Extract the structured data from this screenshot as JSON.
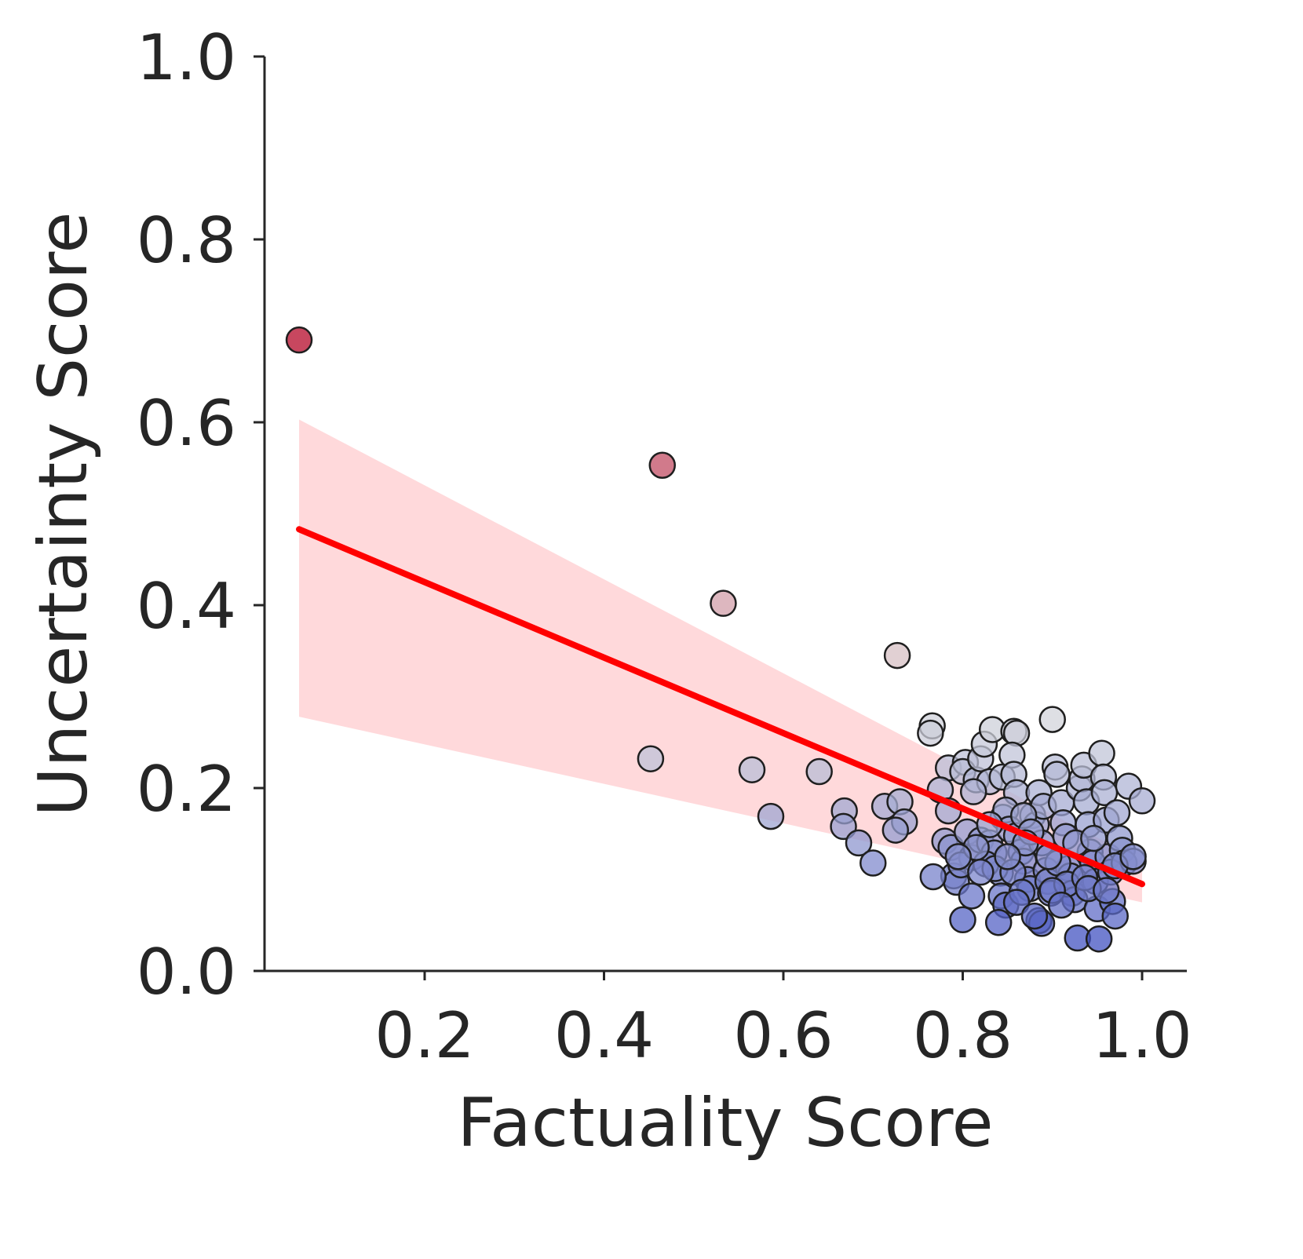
{
  "chart_data": {
    "type": "scatter",
    "xlabel": "Factuality Score",
    "ylabel": "Uncertainty Score",
    "xlim": [
      0.02,
      1.05
    ],
    "ylim": [
      0.0,
      1.0
    ],
    "xticks": [
      "0.2",
      "0.4",
      "0.6",
      "0.8",
      "1.0"
    ],
    "xtick_values": [
      0.2,
      0.4,
      0.6,
      0.8,
      1.0
    ],
    "yticks": [
      "0.0",
      "0.2",
      "0.4",
      "0.6",
      "0.8",
      "1.0"
    ],
    "ytick_values": [
      0.0,
      0.2,
      0.4,
      0.6,
      0.8,
      1.0
    ],
    "grid": false,
    "colors": {
      "regression_line": "#ff0000",
      "confidence_band": "#ffb3b8",
      "colormap": "coolwarm (color encodes uncertainty)"
    },
    "regression": {
      "x": [
        0.06,
        1.0
      ],
      "y": [
        0.483,
        0.095
      ],
      "ci_lower": [
        0.278,
        0.075
      ],
      "ci_upper": [
        0.603,
        0.12
      ]
    },
    "points": [
      [
        0.06,
        0.69
      ],
      [
        0.465,
        0.553
      ],
      [
        0.533,
        0.402
      ],
      [
        0.727,
        0.345
      ],
      [
        0.452,
        0.232
      ],
      [
        0.565,
        0.22
      ],
      [
        0.64,
        0.218
      ],
      [
        0.586,
        0.169
      ],
      [
        0.668,
        0.175
      ],
      [
        0.667,
        0.158
      ],
      [
        0.684,
        0.14
      ],
      [
        0.7,
        0.118
      ],
      [
        0.713,
        0.18
      ],
      [
        0.73,
        0.185
      ],
      [
        0.735,
        0.163
      ],
      [
        0.725,
        0.154
      ],
      [
        0.766,
        0.268
      ],
      [
        0.764,
        0.26
      ],
      [
        0.784,
        0.222
      ],
      [
        0.775,
        0.198
      ],
      [
        0.784,
        0.175
      ],
      [
        0.78,
        0.142
      ],
      [
        0.787,
        0.135
      ],
      [
        0.79,
        0.104
      ],
      [
        0.793,
        0.097
      ],
      [
        0.767,
        0.103
      ],
      [
        0.803,
        0.228
      ],
      [
        0.8,
        0.218
      ],
      [
        0.815,
        0.209
      ],
      [
        0.82,
        0.232
      ],
      [
        0.824,
        0.248
      ],
      [
        0.833,
        0.264
      ],
      [
        0.83,
        0.207
      ],
      [
        0.844,
        0.212
      ],
      [
        0.857,
        0.262
      ],
      [
        0.86,
        0.26
      ],
      [
        0.855,
        0.236
      ],
      [
        0.857,
        0.215
      ],
      [
        0.86,
        0.195
      ],
      [
        0.812,
        0.196
      ],
      [
        0.805,
        0.152
      ],
      [
        0.81,
        0.124
      ],
      [
        0.798,
        0.116
      ],
      [
        0.81,
        0.082
      ],
      [
        0.8,
        0.056
      ],
      [
        0.82,
        0.143
      ],
      [
        0.83,
        0.14
      ],
      [
        0.835,
        0.129
      ],
      [
        0.845,
        0.168
      ],
      [
        0.848,
        0.176
      ],
      [
        0.852,
        0.155
      ],
      [
        0.842,
        0.107
      ],
      [
        0.843,
        0.082
      ],
      [
        0.848,
        0.072
      ],
      [
        0.84,
        0.053
      ],
      [
        0.86,
        0.148
      ],
      [
        0.865,
        0.13
      ],
      [
        0.868,
        0.12
      ],
      [
        0.872,
        0.1
      ],
      [
        0.875,
        0.09
      ],
      [
        0.878,
        0.17
      ],
      [
        0.882,
        0.16
      ],
      [
        0.885,
        0.195
      ],
      [
        0.888,
        0.14
      ],
      [
        0.89,
        0.18
      ],
      [
        0.893,
        0.11
      ],
      [
        0.895,
        0.098
      ],
      [
        0.898,
        0.085
      ],
      [
        0.885,
        0.055
      ],
      [
        0.888,
        0.052
      ],
      [
        0.9,
        0.275
      ],
      [
        0.903,
        0.223
      ],
      [
        0.905,
        0.215
      ],
      [
        0.91,
        0.184
      ],
      [
        0.912,
        0.162
      ],
      [
        0.915,
        0.147
      ],
      [
        0.918,
        0.112
      ],
      [
        0.92,
        0.104
      ],
      [
        0.922,
        0.085
      ],
      [
        0.925,
        0.078
      ],
      [
        0.928,
        0.036
      ],
      [
        0.93,
        0.2
      ],
      [
        0.933,
        0.21
      ],
      [
        0.935,
        0.225
      ],
      [
        0.938,
        0.185
      ],
      [
        0.94,
        0.16
      ],
      [
        0.942,
        0.13
      ],
      [
        0.945,
        0.118
      ],
      [
        0.948,
        0.098
      ],
      [
        0.95,
        0.068
      ],
      [
        0.952,
        0.035
      ],
      [
        0.955,
        0.238
      ],
      [
        0.957,
        0.212
      ],
      [
        0.958,
        0.195
      ],
      [
        0.96,
        0.165
      ],
      [
        0.962,
        0.125
      ],
      [
        0.965,
        0.108
      ],
      [
        0.967,
        0.076
      ],
      [
        0.97,
        0.06
      ],
      [
        0.972,
        0.173
      ],
      [
        0.975,
        0.145
      ],
      [
        0.978,
        0.132
      ],
      [
        0.98,
        0.118
      ],
      [
        0.985,
        0.202
      ],
      [
        0.99,
        0.12
      ],
      [
        1.0,
        0.186
      ],
      [
        0.868,
        0.17
      ],
      [
        0.876,
        0.152
      ],
      [
        0.826,
        0.117
      ],
      [
        0.836,
        0.112
      ],
      [
        0.856,
        0.108
      ],
      [
        0.866,
        0.086
      ],
      [
        0.906,
        0.118
      ],
      [
        0.916,
        0.095
      ],
      [
        0.926,
        0.14
      ],
      [
        0.946,
        0.145
      ],
      [
        0.936,
        0.102
      ],
      [
        0.896,
        0.125
      ],
      [
        0.87,
        0.14
      ],
      [
        0.85,
        0.125
      ],
      [
        0.83,
        0.16
      ],
      [
        0.815,
        0.135
      ],
      [
        0.795,
        0.125
      ],
      [
        0.82,
        0.108
      ],
      [
        0.86,
        0.075
      ],
      [
        0.88,
        0.06
      ],
      [
        0.9,
        0.088
      ],
      [
        0.91,
        0.072
      ],
      [
        0.94,
        0.09
      ],
      [
        0.96,
        0.088
      ],
      [
        0.97,
        0.115
      ],
      [
        0.99,
        0.125
      ]
    ]
  }
}
